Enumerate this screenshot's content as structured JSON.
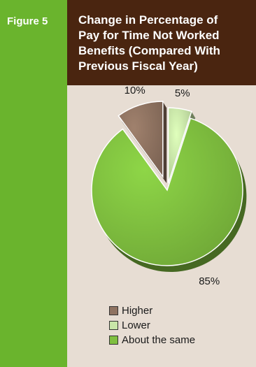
{
  "figure_label": "Figure 5",
  "title_lines": [
    "Change in Percentage of",
    "Pay for Time Not Worked",
    "Benefits (Compared With",
    "Previous Fiscal Year)"
  ],
  "colors": {
    "sidebar": "#6ab42d",
    "title_bg": "#4a2510",
    "panel_bg": "#e7ddd3",
    "higher": "#8f7361",
    "lower": "#c8e6a8",
    "same": "#7fbf3f"
  },
  "chart_data": {
    "type": "pie",
    "title": "Change in Percentage of Pay for Time Not Worked Benefits (Compared With Previous Fiscal Year)",
    "slices": [
      {
        "name": "Higher",
        "value": 10,
        "label": "10%"
      },
      {
        "name": "Lower",
        "value": 5,
        "label": "5%"
      },
      {
        "name": "About the same",
        "value": 85,
        "label": "85%"
      }
    ],
    "legend_position": "bottom"
  }
}
